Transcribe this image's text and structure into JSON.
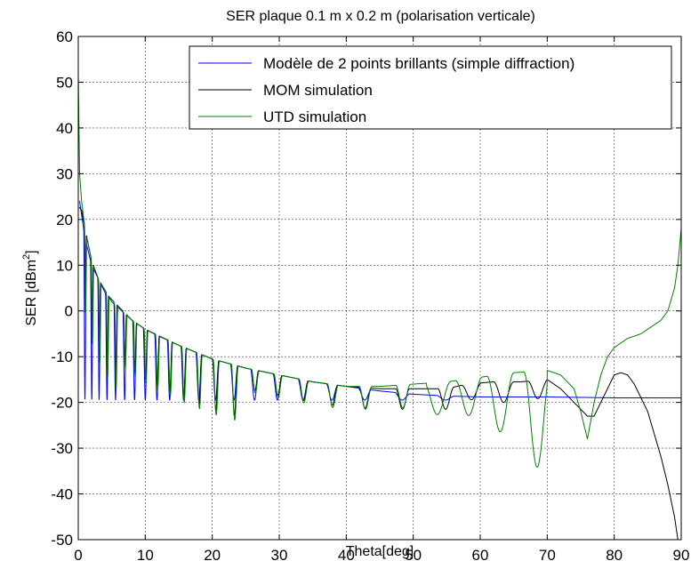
{
  "chart_data": {
    "type": "line",
    "title": "SER plaque 0.1 m x 0.2 m (polarisation verticale)",
    "xlabel": "Theta[deg]",
    "ylabel_main": "SER [dBm",
    "ylabel_sup": "2",
    "ylabel_close": "]",
    "xlim": [
      0,
      90
    ],
    "ylim": [
      -50,
      60
    ],
    "xticks": [
      0,
      10,
      20,
      30,
      40,
      50,
      60,
      70,
      80,
      90
    ],
    "yticks": [
      -50,
      -40,
      -30,
      -20,
      -10,
      0,
      10,
      20,
      30,
      40,
      50,
      60
    ],
    "grid": true,
    "legend_position": "top-right",
    "series": [
      {
        "name": "Modèle de 2 points brillants (simple diffraction)",
        "color": "#0000ff",
        "envelope": [
          [
            0.2,
            24
          ],
          [
            1,
            16
          ],
          [
            2,
            10
          ],
          [
            3,
            7
          ],
          [
            4,
            4
          ],
          [
            6,
            1
          ],
          [
            8,
            -2
          ],
          [
            10,
            -4
          ],
          [
            12,
            -5.5
          ],
          [
            15,
            -7.5
          ],
          [
            20,
            -10.5
          ],
          [
            25,
            -12.5
          ],
          [
            30,
            -14
          ],
          [
            35,
            -15.5
          ],
          [
            40,
            -16.5
          ],
          [
            45,
            -17.5
          ],
          [
            50,
            -18.2
          ],
          [
            55,
            -18.6
          ],
          [
            60,
            -18.8
          ],
          [
            65,
            -18.8
          ],
          [
            70,
            -18.8
          ],
          [
            75,
            -18.9
          ],
          [
            80,
            -19
          ],
          [
            90,
            -19
          ]
        ],
        "null_floor": -19.5,
        "oscillation_end": 60
      },
      {
        "name": "MOM simulation",
        "color": "#000000",
        "points": [
          [
            0,
            23
          ],
          [
            0.5,
            22
          ],
          [
            1,
            18
          ],
          [
            2,
            11
          ],
          [
            3,
            7
          ],
          [
            5,
            2
          ],
          [
            8,
            -2
          ],
          [
            10,
            -4
          ],
          [
            15,
            -7.5
          ],
          [
            20,
            -10.5
          ],
          [
            25,
            -12.5
          ],
          [
            30,
            -14
          ],
          [
            35,
            -15.5
          ],
          [
            40,
            -16.5
          ],
          [
            45,
            -17
          ],
          [
            50,
            -17
          ],
          [
            55,
            -17
          ],
          [
            58,
            -16
          ],
          [
            62,
            -15.5
          ],
          [
            66,
            -15.5
          ],
          [
            70,
            -15
          ],
          [
            72,
            -17
          ],
          [
            74,
            -20
          ],
          [
            76,
            -23
          ],
          [
            77,
            -23
          ],
          [
            78,
            -20
          ],
          [
            79,
            -17
          ],
          [
            80,
            -14
          ],
          [
            81,
            -13.5
          ],
          [
            82,
            -14
          ],
          [
            83,
            -16
          ],
          [
            84,
            -19
          ],
          [
            85,
            -22
          ],
          [
            86,
            -27
          ],
          [
            87,
            -32
          ],
          [
            88,
            -38
          ],
          [
            89,
            -45
          ],
          [
            89.5,
            -50
          ]
        ]
      },
      {
        "name": "UTD simulation",
        "color": "#008000",
        "points": [
          [
            0,
            52
          ],
          [
            0.2,
            30
          ],
          [
            0.5,
            24
          ],
          [
            1,
            18
          ],
          [
            2,
            11
          ],
          [
            3,
            7
          ],
          [
            5,
            2
          ],
          [
            8,
            -2
          ],
          [
            10,
            -4
          ],
          [
            15,
            -7.5
          ],
          [
            20,
            -10.5
          ],
          [
            25,
            -12.5
          ],
          [
            30,
            -14
          ],
          [
            35,
            -15.5
          ],
          [
            40,
            -16.5
          ],
          [
            45,
            -16.5
          ],
          [
            50,
            -16
          ],
          [
            55,
            -15.5
          ],
          [
            60,
            -14.5
          ],
          [
            65,
            -13.5
          ],
          [
            70,
            -13
          ],
          [
            72,
            -14
          ],
          [
            74,
            -17
          ],
          [
            75,
            -22
          ],
          [
            76,
            -28
          ],
          [
            77,
            -20
          ],
          [
            78,
            -14
          ],
          [
            79,
            -10
          ],
          [
            80,
            -8
          ],
          [
            82,
            -6
          ],
          [
            84,
            -5
          ],
          [
            86,
            -3
          ],
          [
            87,
            -2
          ],
          [
            88,
            0
          ],
          [
            89,
            5
          ],
          [
            89.5,
            10
          ],
          [
            90,
            18
          ]
        ],
        "nulls": [
          [
            63,
            -27
          ],
          [
            68.5,
            -35
          ],
          [
            76,
            -30
          ]
        ]
      }
    ]
  }
}
